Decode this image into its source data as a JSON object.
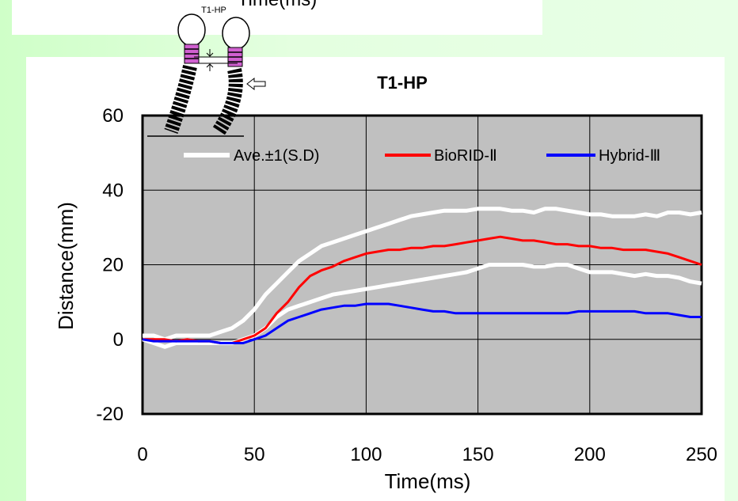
{
  "top_panel": {
    "text": "Time(ms)"
  },
  "inset": {
    "label": "T1-HP"
  },
  "chart_data": {
    "type": "line",
    "title": "T1-HP",
    "xlabel": "Time(ms)",
    "ylabel": "Distance(mm)",
    "xlim": [
      0,
      250
    ],
    "ylim": [
      -20,
      60
    ],
    "xticks": [
      "0",
      "50",
      "100",
      "150",
      "200",
      "250"
    ],
    "yticks": [
      "-20",
      "0",
      "20",
      "40",
      "60"
    ],
    "grid": true,
    "legend_position": "top",
    "plot_background": "#c0c0c0",
    "series": [
      {
        "name": "Ave.±1(S.D)",
        "color": "#ffffff",
        "points": [
          [
            0,
            1
          ],
          [
            5,
            1
          ],
          [
            10,
            0
          ],
          [
            15,
            1
          ],
          [
            20,
            1
          ],
          [
            25,
            1
          ],
          [
            30,
            1
          ],
          [
            35,
            2
          ],
          [
            40,
            3
          ],
          [
            45,
            5
          ],
          [
            50,
            8
          ],
          [
            55,
            12
          ],
          [
            60,
            15
          ],
          [
            65,
            18
          ],
          [
            70,
            21
          ],
          [
            75,
            23
          ],
          [
            80,
            25
          ],
          [
            85,
            26
          ],
          [
            90,
            27
          ],
          [
            95,
            28
          ],
          [
            100,
            29
          ],
          [
            105,
            30
          ],
          [
            110,
            31
          ],
          [
            115,
            32
          ],
          [
            120,
            33
          ],
          [
            125,
            33.5
          ],
          [
            130,
            34
          ],
          [
            135,
            34.5
          ],
          [
            140,
            34.5
          ],
          [
            145,
            34.5
          ],
          [
            150,
            35
          ],
          [
            155,
            35
          ],
          [
            160,
            35
          ],
          [
            165,
            34.5
          ],
          [
            170,
            34.5
          ],
          [
            175,
            34
          ],
          [
            180,
            35
          ],
          [
            185,
            35
          ],
          [
            190,
            34.5
          ],
          [
            195,
            34
          ],
          [
            200,
            33.5
          ],
          [
            205,
            33.5
          ],
          [
            210,
            33
          ],
          [
            215,
            33
          ],
          [
            220,
            33
          ],
          [
            225,
            33.5
          ],
          [
            230,
            33
          ],
          [
            235,
            34
          ],
          [
            240,
            34
          ],
          [
            245,
            33.5
          ],
          [
            250,
            34
          ]
        ]
      },
      {
        "name": "",
        "color": "#ffffff",
        "points": [
          [
            0,
            0
          ],
          [
            5,
            -1
          ],
          [
            10,
            -2
          ],
          [
            15,
            -1
          ],
          [
            20,
            -1
          ],
          [
            25,
            -1
          ],
          [
            30,
            -1
          ],
          [
            35,
            -1
          ],
          [
            40,
            -1
          ],
          [
            45,
            0
          ],
          [
            50,
            1
          ],
          [
            55,
            3
          ],
          [
            60,
            6
          ],
          [
            65,
            8
          ],
          [
            70,
            9
          ],
          [
            75,
            10
          ],
          [
            80,
            11
          ],
          [
            85,
            12
          ],
          [
            90,
            12.5
          ],
          [
            95,
            13
          ],
          [
            100,
            13.5
          ],
          [
            105,
            14
          ],
          [
            110,
            14.5
          ],
          [
            115,
            15
          ],
          [
            120,
            15.5
          ],
          [
            125,
            16
          ],
          [
            130,
            16.5
          ],
          [
            135,
            17
          ],
          [
            140,
            17.5
          ],
          [
            145,
            18
          ],
          [
            150,
            19
          ],
          [
            155,
            20
          ],
          [
            160,
            20
          ],
          [
            165,
            20
          ],
          [
            170,
            20
          ],
          [
            175,
            19.5
          ],
          [
            180,
            19.5
          ],
          [
            185,
            20
          ],
          [
            190,
            20
          ],
          [
            195,
            19
          ],
          [
            200,
            18
          ],
          [
            205,
            18
          ],
          [
            210,
            18
          ],
          [
            215,
            17.5
          ],
          [
            220,
            17
          ],
          [
            225,
            17.5
          ],
          [
            230,
            17
          ],
          [
            235,
            17
          ],
          [
            240,
            16.5
          ],
          [
            245,
            15.5
          ],
          [
            250,
            15
          ]
        ]
      },
      {
        "name": "BioRID-Ⅱ",
        "color": "#ff0000",
        "points": [
          [
            0,
            0
          ],
          [
            5,
            0
          ],
          [
            10,
            0
          ],
          [
            15,
            -0.5
          ],
          [
            20,
            0
          ],
          [
            25,
            -0.5
          ],
          [
            30,
            -0.5
          ],
          [
            35,
            -1
          ],
          [
            40,
            -1
          ],
          [
            45,
            0
          ],
          [
            50,
            1
          ],
          [
            55,
            3
          ],
          [
            60,
            7
          ],
          [
            65,
            10
          ],
          [
            70,
            14
          ],
          [
            75,
            17
          ],
          [
            80,
            18.5
          ],
          [
            85,
            19.5
          ],
          [
            90,
            21
          ],
          [
            95,
            22
          ],
          [
            100,
            23
          ],
          [
            105,
            23.5
          ],
          [
            110,
            24
          ],
          [
            115,
            24
          ],
          [
            120,
            24.5
          ],
          [
            125,
            24.5
          ],
          [
            130,
            25
          ],
          [
            135,
            25
          ],
          [
            140,
            25.5
          ],
          [
            145,
            26
          ],
          [
            150,
            26.5
          ],
          [
            155,
            27
          ],
          [
            160,
            27.5
          ],
          [
            165,
            27
          ],
          [
            170,
            26.5
          ],
          [
            175,
            26.5
          ],
          [
            180,
            26
          ],
          [
            185,
            25.5
          ],
          [
            190,
            25.5
          ],
          [
            195,
            25
          ],
          [
            200,
            25
          ],
          [
            205,
            24.5
          ],
          [
            210,
            24.5
          ],
          [
            215,
            24
          ],
          [
            220,
            24
          ],
          [
            225,
            24
          ],
          [
            230,
            23.5
          ],
          [
            235,
            23
          ],
          [
            240,
            22
          ],
          [
            245,
            21
          ],
          [
            250,
            20
          ]
        ]
      },
      {
        "name": "Hybrid-Ⅲ",
        "color": "#0000ff",
        "points": [
          [
            0,
            0
          ],
          [
            5,
            -0.5
          ],
          [
            10,
            -0.5
          ],
          [
            15,
            -0.5
          ],
          [
            20,
            -0.5
          ],
          [
            25,
            -0.5
          ],
          [
            30,
            -0.5
          ],
          [
            35,
            -1
          ],
          [
            40,
            -1
          ],
          [
            45,
            -1
          ],
          [
            50,
            0
          ],
          [
            55,
            1
          ],
          [
            60,
            3
          ],
          [
            65,
            5
          ],
          [
            70,
            6
          ],
          [
            75,
            7
          ],
          [
            80,
            8
          ],
          [
            85,
            8.5
          ],
          [
            90,
            9
          ],
          [
            95,
            9
          ],
          [
            100,
            9.5
          ],
          [
            105,
            9.5
          ],
          [
            110,
            9.5
          ],
          [
            115,
            9
          ],
          [
            120,
            8.5
          ],
          [
            125,
            8
          ],
          [
            130,
            7.5
          ],
          [
            135,
            7.5
          ],
          [
            140,
            7
          ],
          [
            145,
            7
          ],
          [
            150,
            7
          ],
          [
            155,
            7
          ],
          [
            160,
            7
          ],
          [
            165,
            7
          ],
          [
            170,
            7
          ],
          [
            175,
            7
          ],
          [
            180,
            7
          ],
          [
            185,
            7
          ],
          [
            190,
            7
          ],
          [
            195,
            7.5
          ],
          [
            200,
            7.5
          ],
          [
            205,
            7.5
          ],
          [
            210,
            7.5
          ],
          [
            215,
            7.5
          ],
          [
            220,
            7.5
          ],
          [
            225,
            7
          ],
          [
            230,
            7
          ],
          [
            235,
            7
          ],
          [
            240,
            6.5
          ],
          [
            245,
            6
          ],
          [
            250,
            6
          ]
        ]
      }
    ]
  }
}
